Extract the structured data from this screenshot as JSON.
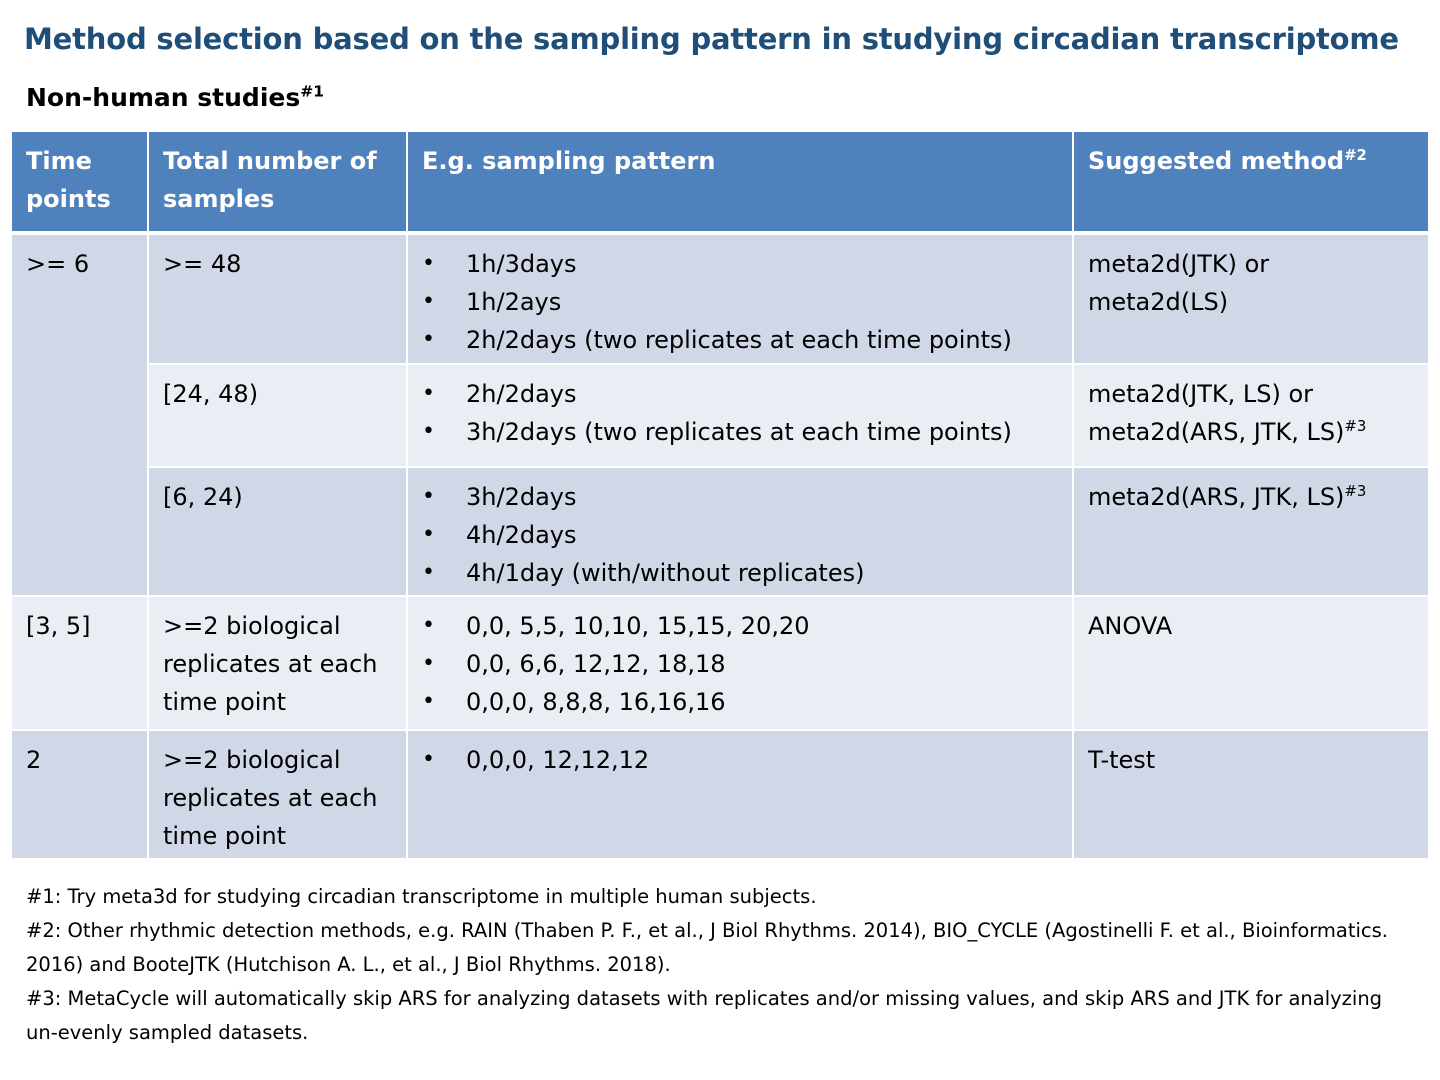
{
  "title": "Method selection based on the sampling pattern in studying circadian transcriptome",
  "subtitle": {
    "text": "Non-human studies",
    "sup": "#1"
  },
  "table": {
    "headers": {
      "time_points": "Time points",
      "total_samples": "Total number of samples",
      "sampling_pattern": "E.g. sampling pattern",
      "suggested_method": "Suggested method",
      "suggested_method_sup": "#2"
    },
    "rows": [
      {
        "time_points": ">= 6",
        "total_samples": ">= 48",
        "patterns": [
          "1h/3days",
          "1h/2ays",
          "2h/2days (two replicates at each time points)"
        ],
        "method_line1": "meta2d(JTK) or",
        "method_line2": "meta2d(LS)",
        "method_sup": ""
      },
      {
        "total_samples": "[24, 48)",
        "patterns": [
          "2h/2days",
          "3h/2days (two replicates at each time points)"
        ],
        "method_line1": "meta2d(JTK, LS) or",
        "method_line2": "meta2d(ARS, JTK, LS)",
        "method_sup": "#3"
      },
      {
        "total_samples": "[6, 24)",
        "patterns": [
          "3h/2days",
          "4h/2days",
          "4h/1day (with/without replicates)"
        ],
        "method_line1": "meta2d(ARS, JTK, LS)",
        "method_sup": "#3"
      },
      {
        "time_points": "[3, 5]",
        "total_samples": ">=2 biological replicates at each time point",
        "patterns": [
          "0,0, 5,5, 10,10, 15,15, 20,20",
          "0,0, 6,6, 12,12, 18,18",
          "0,0,0, 8,8,8, 16,16,16"
        ],
        "method_line1": "ANOVA"
      },
      {
        "time_points": "2",
        "total_samples": ">=2 biological replicates at each time point",
        "patterns": [
          "0,0,0, 12,12,12"
        ],
        "method_line1": "T-test"
      }
    ]
  },
  "footnotes": [
    "#1: Try meta3d for studying circadian transcriptome in multiple human subjects.",
    "#2: Other rhythmic detection methods, e.g. RAIN (Thaben P. F., et al., J Biol Rhythms. 2014), BIO_CYCLE (Agostinelli F. et al., Bioinformatics. 2016) and BooteJTK (Hutchison A. L., et al., J Biol Rhythms. 2018).",
    "#3: MetaCycle will automatically skip ARS for analyzing datasets with replicates and/or missing values, and skip ARS and JTK for analyzing un-evenly sampled datasets."
  ],
  "colors": {
    "title": "#1f4e79",
    "header_bg": "#4f81bd",
    "row_dark": "#d0d8e8",
    "row_light": "#e9edf4"
  }
}
